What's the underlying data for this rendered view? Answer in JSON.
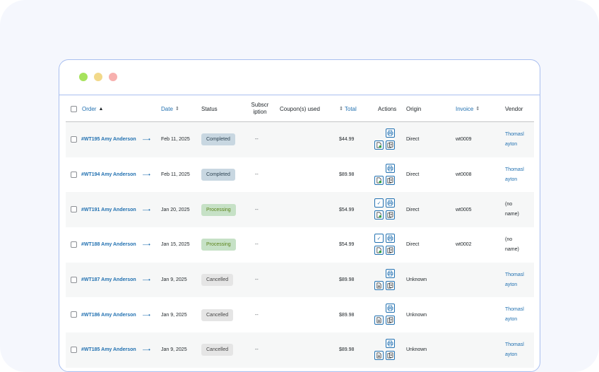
{
  "theme": {
    "dot_green": "#a6e25c",
    "dot_yellow": "#f2d98a",
    "dot_red": "#f7b0ae",
    "status_colors": {
      "Completed": {
        "bg": "#c8d7e1",
        "fg": "#2e4453"
      },
      "Processing": {
        "bg": "#c6e1c6",
        "fg": "#5b841b"
      },
      "Cancelled": {
        "bg": "#e5e5e5",
        "fg": "#454545"
      }
    }
  },
  "table": {
    "headers": {
      "order": "Order",
      "date": "Date",
      "status": "Status",
      "subscription": "Subscr iption",
      "coupons": "Coupon(s) used",
      "total": "Total",
      "actions": "Actions",
      "origin": "Origin",
      "invoice": "Invoice",
      "vendor": "Vendor"
    },
    "rows": [
      {
        "order": "#WT195 Amy Anderson",
        "date": "Feb 11, 2025",
        "status": "Completed",
        "subscription": "--",
        "total": "$44.99",
        "origin": "Direct",
        "invoice": "wt0009",
        "vendor_line1": "Thomasl",
        "vendor_line2": "ayton",
        "vendor_link": true,
        "has_check": false,
        "doc_style": "green"
      },
      {
        "order": "#WT194 Amy Anderson",
        "date": "Feb 11, 2025",
        "status": "Completed",
        "subscription": "--",
        "total": "$89.98",
        "origin": "Direct",
        "invoice": "wt0008",
        "vendor_line1": "Thomasl",
        "vendor_line2": "ayton",
        "vendor_link": true,
        "has_check": false,
        "doc_style": "green"
      },
      {
        "order": "#WT191 Amy Anderson",
        "date": "Jan 20, 2025",
        "status": "Processing",
        "subscription": "--",
        "total": "$54.99",
        "origin": "Direct",
        "invoice": "wt0005",
        "vendor_line1": "(no",
        "vendor_line2": "name)",
        "vendor_link": false,
        "has_check": true,
        "doc_style": "green"
      },
      {
        "order": "#WT188 Amy Anderson",
        "date": "Jan 15, 2025",
        "status": "Processing",
        "subscription": "--",
        "total": "$54.99",
        "origin": "Direct",
        "invoice": "wt0002",
        "vendor_line1": "(no",
        "vendor_line2": "name)",
        "vendor_link": false,
        "has_check": true,
        "doc_style": "green"
      },
      {
        "order": "#WT187 Amy Anderson",
        "date": "Jan 9, 2025",
        "status": "Cancelled",
        "subscription": "--",
        "total": "$89.98",
        "origin": "Unknown",
        "invoice": "",
        "vendor_line1": "Thomasl",
        "vendor_line2": "ayton",
        "vendor_link": true,
        "has_check": false,
        "doc_style": "plain"
      },
      {
        "order": "#WT186 Amy Anderson",
        "date": "Jan 9, 2025",
        "status": "Cancelled",
        "subscription": "--",
        "total": "$89.98",
        "origin": "Unknown",
        "invoice": "",
        "vendor_line1": "Thomasl",
        "vendor_line2": "ayton",
        "vendor_link": true,
        "has_check": false,
        "doc_style": "plain"
      },
      {
        "order": "#WT185 Amy Anderson",
        "date": "Jan 9, 2025",
        "status": "Cancelled",
        "subscription": "--",
        "total": "$89.98",
        "origin": "Unknown",
        "invoice": "",
        "vendor_line1": "Thomasl",
        "vendor_line2": "ayton",
        "vendor_link": true,
        "has_check": false,
        "doc_style": "plain"
      }
    ]
  }
}
